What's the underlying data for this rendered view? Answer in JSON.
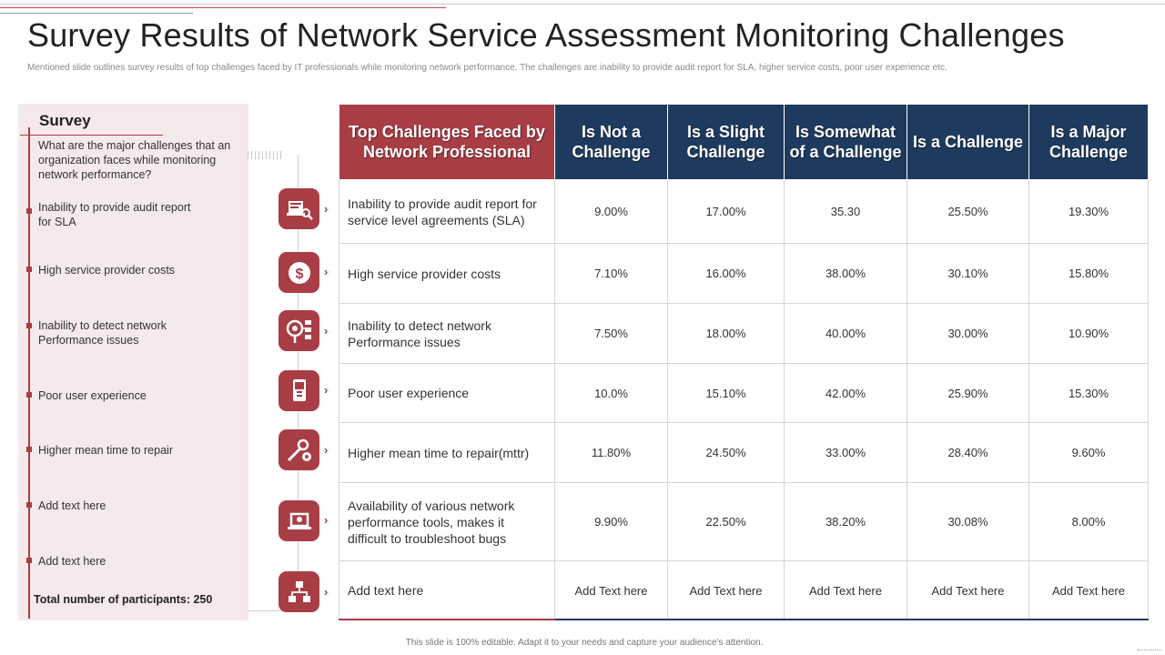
{
  "title": "Survey Results of Network Service Assessment Monitoring Challenges",
  "subtitle": "Mentioned slide outlines survey results of top challenges faced by IT professionals while monitoring network performance. The challenges are inability to provide audit report for SLA, higher service costs, poor user experience etc.",
  "survey": {
    "heading": "Survey",
    "question": "What are the major challenges that an organization faces while monitoring network performance?",
    "items": [
      "Inability to provide audit report for SLA",
      "High service provider costs",
      "Inability to detect network Performance issues",
      "Poor user experience",
      "Higher mean time to repair",
      "Add text here",
      "Add text here"
    ],
    "participants_label": "Total number of participants:",
    "participants_value": "250"
  },
  "table": {
    "headers": [
      "Top Challenges Faced by Network Professional",
      "Is Not a Challenge",
      "Is a Slight Challenge",
      "Is Somewhat of a Challenge",
      "Is a Challenge",
      "Is a Major Challenge"
    ],
    "rows": [
      {
        "label": "Inability to provide audit report for service level agreements (SLA)",
        "icon": "audit-report-icon",
        "values": [
          "9.00%",
          "17.00%",
          "35.30",
          "25.50%",
          "19.30%"
        ]
      },
      {
        "label": "High service provider costs",
        "icon": "dollar-icon",
        "values": [
          "7.10%",
          "16.00%",
          "38.00%",
          "30.10%",
          "15.80%"
        ]
      },
      {
        "label": "Inability to detect network Performance issues",
        "icon": "network-detect-icon",
        "values": [
          "7.50%",
          "18.00%",
          "40.00%",
          "30.00%",
          "10.90%"
        ]
      },
      {
        "label": "Poor user experience",
        "icon": "mobile-device-icon",
        "values": [
          "10.0%",
          "15.10%",
          "42.00%",
          "25.90%",
          "15.30%"
        ]
      },
      {
        "label": "Higher mean time to repair(mttr)",
        "icon": "repair-tools-icon",
        "values": [
          "11.80%",
          "24.50%",
          "33.00%",
          "28.40%",
          "9.60%"
        ]
      },
      {
        "label": "Availability of various network performance tools, makes it difficult to troubleshoot bugs",
        "icon": "laptop-tools-icon",
        "values": [
          "9.90%",
          "22.50%",
          "38.20%",
          "30.08%",
          "8.00%"
        ]
      },
      {
        "label": "Add text here",
        "icon": "network-nodes-icon",
        "values": [
          "Add Text here",
          "Add Text here",
          "Add Text here",
          "Add Text here",
          "Add Text here"
        ]
      }
    ]
  },
  "footer": "This slide is 100% editable. Adapt it to your needs and capture your audience's attention.",
  "colors": {
    "accent_red": "#a93d45",
    "header_blue": "#1f3a5f",
    "panel_pink": "#f5e9eb"
  }
}
